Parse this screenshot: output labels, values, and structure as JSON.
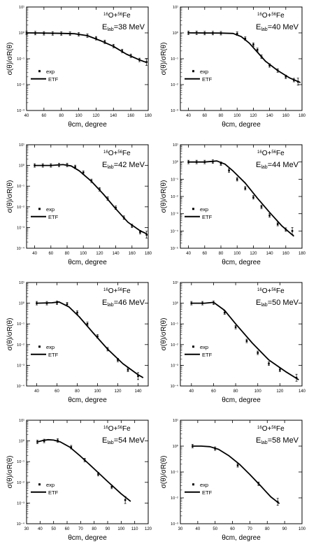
{
  "figure": {
    "ylabel": "σ(θ)/σR(θ)",
    "xlabel": "θcm, degree"
  },
  "chart_data": [
    {
      "type": "scatter",
      "reaction": {
        "a": "16",
        "b": "O+",
        "c": "56",
        "d": "Fe"
      },
      "energy": {
        "pre": "E",
        "sub": "lab",
        "post": "=38 MeV"
      },
      "xlim": [
        40,
        180
      ],
      "xticks": [
        40,
        60,
        80,
        100,
        120,
        140,
        160,
        180
      ],
      "log_scale_y": true,
      "ylim_exp": [
        -3,
        1
      ],
      "yticks_exp": [
        -3,
        -2,
        -1,
        0,
        1
      ],
      "legend": {
        "exp": "exp",
        "theory": "ETF"
      },
      "series": [
        {
          "name": "exp",
          "x": [
            40,
            50,
            60,
            70,
            80,
            90,
            100,
            110,
            120,
            130,
            140,
            150,
            160,
            170,
            178
          ],
          "y": [
            1.0,
            0.98,
            0.96,
            0.95,
            0.94,
            0.93,
            0.88,
            0.78,
            0.62,
            0.45,
            0.31,
            0.2,
            0.13,
            0.09,
            0.075
          ]
        },
        {
          "name": "ETF",
          "x": [
            40,
            60,
            80,
            95,
            110,
            125,
            140,
            155,
            170,
            178
          ],
          "y": [
            1.0,
            0.98,
            0.96,
            0.93,
            0.78,
            0.5,
            0.3,
            0.15,
            0.09,
            0.072
          ]
        }
      ]
    },
    {
      "type": "scatter",
      "reaction": {
        "a": "16",
        "b": "O+",
        "c": "56",
        "d": "Fe"
      },
      "energy": {
        "pre": "E",
        "sub": "lab",
        "post": "=40 MeV"
      },
      "xlim": [
        30,
        180
      ],
      "xticks": [
        40,
        60,
        80,
        100,
        120,
        140,
        160,
        180
      ],
      "log_scale_y": true,
      "ylim_exp": [
        -3,
        1
      ],
      "yticks_exp": [
        -3,
        -2,
        -1,
        0,
        1
      ],
      "legend": {
        "exp": "exp",
        "theory": "ETF"
      },
      "series": [
        {
          "name": "exp",
          "x": [
            40,
            50,
            60,
            70,
            80,
            100,
            110,
            120,
            125,
            130,
            140,
            150,
            160,
            170,
            175
          ],
          "y": [
            1.0,
            1.0,
            0.98,
            0.98,
            0.97,
            0.93,
            0.6,
            0.35,
            0.22,
            0.12,
            0.055,
            0.035,
            0.02,
            0.015,
            0.013
          ]
        },
        {
          "name": "ETF",
          "x": [
            40,
            60,
            80,
            95,
            105,
            115,
            125,
            135,
            150,
            165,
            178
          ],
          "y": [
            1.0,
            0.99,
            0.98,
            0.95,
            0.72,
            0.4,
            0.18,
            0.08,
            0.035,
            0.018,
            0.012
          ]
        }
      ]
    },
    {
      "type": "scatter",
      "reaction": {
        "a": "16",
        "b": "O+",
        "c": "56",
        "d": "Fe"
      },
      "energy": {
        "pre": "E",
        "sub": "lab",
        "post": "=42 MeV"
      },
      "xlim": [
        30,
        180
      ],
      "xticks": [
        40,
        60,
        80,
        100,
        120,
        140,
        160,
        180
      ],
      "log_scale_y": true,
      "ylim_exp": [
        -4,
        1
      ],
      "yticks_exp": [
        -4,
        -3,
        -2,
        -1,
        0,
        1
      ],
      "legend": {
        "exp": "exp",
        "theory": "ETF"
      },
      "series": [
        {
          "name": "exp",
          "x": [
            40,
            50,
            60,
            70,
            80,
            90,
            100,
            110,
            120,
            130,
            140,
            150,
            160,
            170,
            178
          ],
          "y": [
            1.0,
            1.0,
            1.0,
            1.05,
            1.05,
            0.85,
            0.45,
            0.18,
            0.07,
            0.025,
            0.009,
            0.003,
            0.0012,
            0.0006,
            0.00045
          ]
        },
        {
          "name": "ETF",
          "x": [
            40,
            60,
            75,
            85,
            95,
            110,
            125,
            140,
            155,
            170,
            178
          ],
          "y": [
            1.0,
            1.0,
            1.1,
            0.95,
            0.55,
            0.17,
            0.04,
            0.008,
            0.0018,
            0.0007,
            0.0005
          ]
        }
      ]
    },
    {
      "type": "scatter",
      "reaction": {
        "a": "16",
        "b": "O+",
        "c": "56",
        "d": "Fe"
      },
      "energy": {
        "pre": "E",
        "sub": "lab",
        "post": "=44 MeV"
      },
      "xlim": [
        30,
        180
      ],
      "xticks": [
        40,
        60,
        80,
        100,
        120,
        140,
        160,
        180
      ],
      "log_scale_y": true,
      "ylim_exp": [
        -5,
        1
      ],
      "yticks_exp": [
        -5,
        -4,
        -3,
        -2,
        -1,
        0,
        1
      ],
      "legend": {
        "exp": "exp",
        "theory": "ETF"
      },
      "series": [
        {
          "name": "exp",
          "x": [
            40,
            50,
            60,
            70,
            80,
            90,
            100,
            110,
            120,
            130,
            140,
            150,
            160,
            168
          ],
          "y": [
            1.0,
            1.0,
            1.0,
            1.05,
            0.8,
            0.32,
            0.1,
            0.03,
            0.009,
            0.0025,
            0.0008,
            0.00025,
            0.00012,
            0.0001
          ]
        },
        {
          "name": "ETF",
          "x": [
            40,
            60,
            75,
            85,
            95,
            110,
            125,
            140,
            155,
            170
          ],
          "y": [
            1.0,
            1.0,
            1.15,
            0.75,
            0.3,
            0.06,
            0.008,
            0.0012,
            0.0002,
            5e-05
          ]
        }
      ]
    },
    {
      "type": "scatter",
      "reaction": {
        "a": "16",
        "b": "O+",
        "c": "56",
        "d": "Fe"
      },
      "energy": {
        "pre": "E",
        "sub": "lab",
        "post": "=46 MeV"
      },
      "xlim": [
        30,
        150
      ],
      "xticks": [
        40,
        60,
        80,
        100,
        120,
        140
      ],
      "log_scale_y": true,
      "ylim_exp": [
        -4,
        1
      ],
      "yticks_exp": [
        -4,
        -3,
        -2,
        -1,
        0,
        1
      ],
      "legend": {
        "exp": "exp",
        "theory": "ETF"
      },
      "series": [
        {
          "name": "exp",
          "x": [
            40,
            50,
            60,
            70,
            80,
            90,
            100,
            110,
            120,
            130,
            140
          ],
          "y": [
            1.0,
            1.0,
            1.05,
            0.9,
            0.35,
            0.1,
            0.025,
            0.006,
            0.0018,
            0.0006,
            0.0003
          ]
        },
        {
          "name": "ETF",
          "x": [
            40,
            55,
            62,
            72,
            82,
            95,
            110,
            125,
            140,
            145
          ],
          "y": [
            1.0,
            1.05,
            1.15,
            0.65,
            0.22,
            0.04,
            0.006,
            0.0012,
            0.00035,
            0.00025
          ]
        }
      ]
    },
    {
      "type": "scatter",
      "reaction": {
        "a": "16",
        "b": "O+",
        "c": "56",
        "d": "Fe"
      },
      "energy": {
        "pre": "E",
        "sub": "lab",
        "post": "=50 MeV"
      },
      "xlim": [
        30,
        140
      ],
      "xticks": [
        40,
        60,
        80,
        100,
        120,
        140
      ],
      "log_scale_y": true,
      "ylim_exp": [
        -4,
        1
      ],
      "yticks_exp": [
        -4,
        -3,
        -2,
        -1,
        0,
        1
      ],
      "legend": {
        "exp": "exp",
        "theory": "ETF"
      },
      "series": [
        {
          "name": "exp",
          "x": [
            40,
            50,
            60,
            70,
            80,
            90,
            100,
            110,
            120,
            135
          ],
          "y": [
            1.0,
            1.0,
            1.05,
            0.35,
            0.07,
            0.015,
            0.004,
            0.0012,
            0.0006,
            0.00025
          ]
        },
        {
          "name": "ETF",
          "x": [
            40,
            52,
            60,
            70,
            80,
            95,
            110,
            125,
            137
          ],
          "y": [
            1.0,
            1.0,
            1.1,
            0.45,
            0.1,
            0.012,
            0.0018,
            0.0005,
            0.0002
          ]
        }
      ]
    },
    {
      "type": "scatter",
      "reaction": {
        "a": "16",
        "b": "O+",
        "c": "56",
        "d": "Fe"
      },
      "energy": {
        "pre": "E",
        "sub": "lab",
        "post": "=54 MeV"
      },
      "xlim": [
        30,
        120
      ],
      "xticks": [
        30,
        40,
        50,
        60,
        70,
        80,
        90,
        100,
        110,
        120
      ],
      "log_scale_y": true,
      "ylim_exp": [
        -4,
        1
      ],
      "yticks_exp": [
        -4,
        -3,
        -2,
        -1,
        0,
        1
      ],
      "legend": {
        "exp": "exp",
        "theory": "ETF"
      },
      "series": [
        {
          "name": "exp",
          "x": [
            38,
            43,
            53,
            63,
            73,
            83,
            93,
            103
          ],
          "y": [
            0.9,
            1.0,
            1.05,
            0.5,
            0.12,
            0.025,
            0.006,
            0.0014
          ]
        },
        {
          "name": "ETF",
          "x": [
            38,
            42,
            46,
            50,
            55,
            62,
            70,
            80,
            90,
            100,
            107
          ],
          "y": [
            0.9,
            1.05,
            1.15,
            1.1,
            0.9,
            0.5,
            0.18,
            0.045,
            0.011,
            0.0028,
            0.0012
          ]
        }
      ]
    },
    {
      "type": "scatter",
      "reaction": {
        "a": "16",
        "b": "O+",
        "c": "56",
        "d": "Fe"
      },
      "energy": {
        "pre": "E",
        "sub": "lab",
        "post": "=58 MeV"
      },
      "xlim": [
        30,
        100
      ],
      "xticks": [
        30,
        40,
        50,
        60,
        70,
        80,
        90,
        100
      ],
      "log_scale_y": true,
      "ylim_exp": [
        -3,
        1
      ],
      "yticks_exp": [
        -3,
        -2,
        -1,
        0,
        1
      ],
      "legend": {
        "exp": "exp",
        "theory": "ETF"
      },
      "series": [
        {
          "name": "exp",
          "x": [
            37,
            50,
            63,
            75,
            86
          ],
          "y": [
            1.0,
            0.8,
            0.18,
            0.035,
            0.007
          ]
        },
        {
          "name": "ETF",
          "x": [
            37,
            42,
            47,
            52,
            58,
            64,
            70,
            76,
            82,
            87
          ],
          "y": [
            1.0,
            1.0,
            0.95,
            0.75,
            0.42,
            0.2,
            0.08,
            0.03,
            0.011,
            0.006
          ]
        }
      ]
    }
  ]
}
